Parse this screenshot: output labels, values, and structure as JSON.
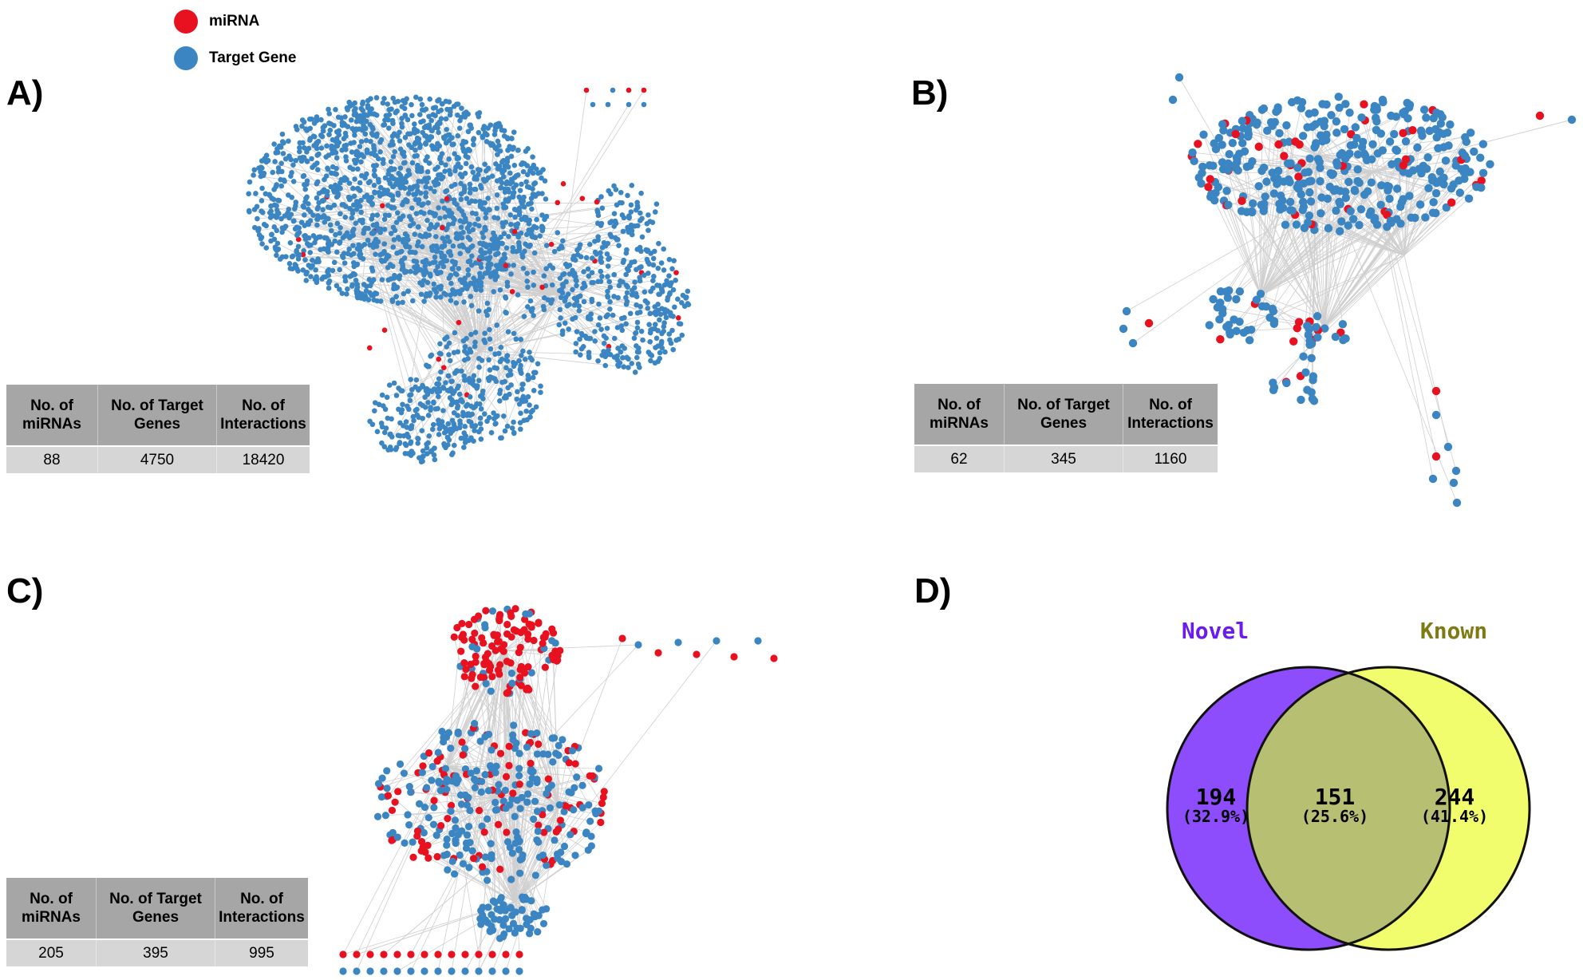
{
  "legend": [
    {
      "label": "miRNA",
      "color": "#e8111f"
    },
    {
      "label": "Target Gene",
      "color": "#3b86c2"
    }
  ],
  "colors": {
    "mirna": "#e8111f",
    "gene": "#3b86c2",
    "edge": "#cfcfcf"
  },
  "panels": {
    "a": {
      "label": "A)",
      "table": {
        "headers": [
          "No. of\nmiRNAs",
          "No. of Target\nGenes",
          "No. of\nInteractions"
        ],
        "values": [
          "88",
          "4750",
          "18420"
        ]
      }
    },
    "b": {
      "label": "B)",
      "table": {
        "headers": [
          "No. of\nmiRNAs",
          "No. of Target\nGenes",
          "No. of\nInteractions"
        ],
        "values": [
          "62",
          "345",
          "1160"
        ]
      }
    },
    "c": {
      "label": "C)",
      "table": {
        "headers": [
          "No. of\nmiRNAs",
          "No. of Target\nGenes",
          "No. of\nInteractions"
        ],
        "values": [
          "205",
          "395",
          "995"
        ]
      }
    },
    "d": {
      "label": "D)",
      "venn": {
        "left": {
          "title": "Novel",
          "count": "194",
          "percent": "(32.9%)",
          "color": "#8e4dfc",
          "title_color": "#6a1cf0"
        },
        "overlap": {
          "count": "151",
          "percent": "(25.6%)",
          "color": "#b7bf72"
        },
        "right": {
          "title": "Known",
          "count": "244",
          "percent": "(41.4%)",
          "color": "#f2fd6e",
          "title_color": "#7e7a14"
        }
      }
    }
  }
}
